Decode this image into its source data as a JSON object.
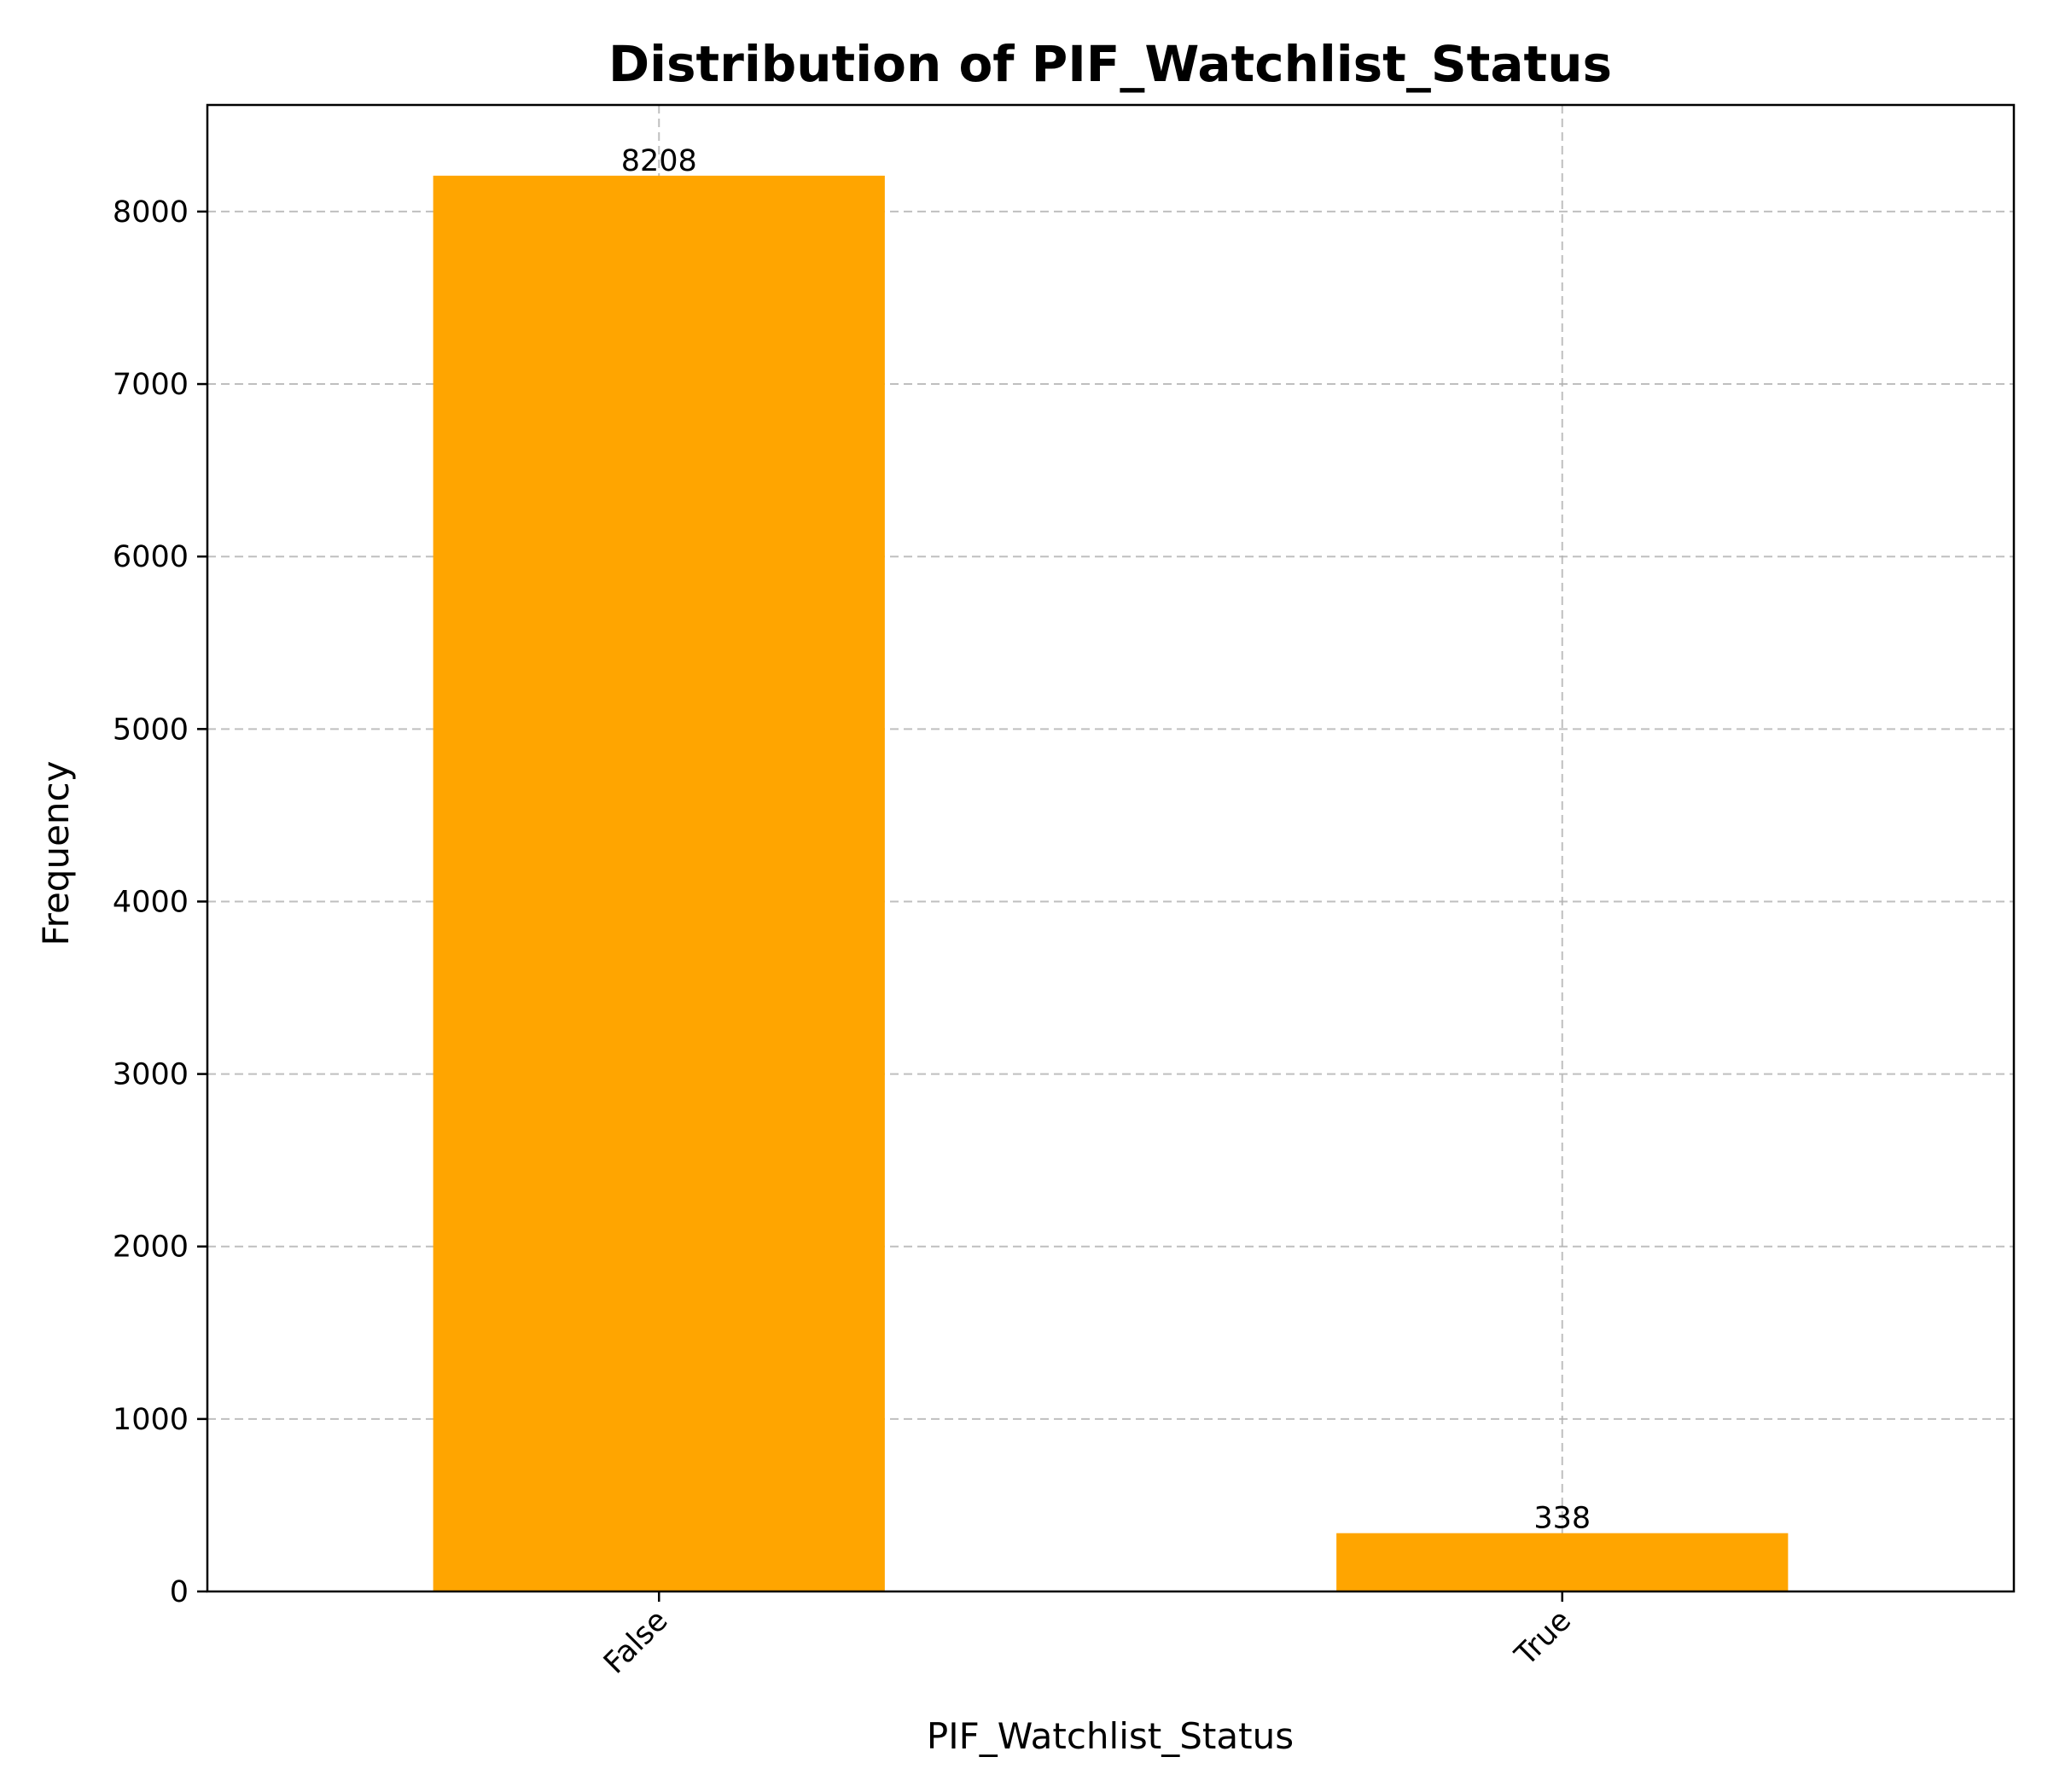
{
  "chart_data": {
    "type": "bar",
    "title": "Distribution of PIF_Watchlist_Status",
    "xlabel": "PIF_Watchlist_Status",
    "ylabel": "Frequency",
    "categories": [
      "False",
      "True"
    ],
    "values": [
      8208,
      338
    ],
    "data_labels": [
      "8208",
      "338"
    ],
    "ylim": [
      0,
      8618
    ],
    "yticks": [
      0,
      1000,
      2000,
      3000,
      4000,
      5000,
      6000,
      7000,
      8000
    ],
    "grid": true,
    "bar_color": "#FFA500"
  }
}
